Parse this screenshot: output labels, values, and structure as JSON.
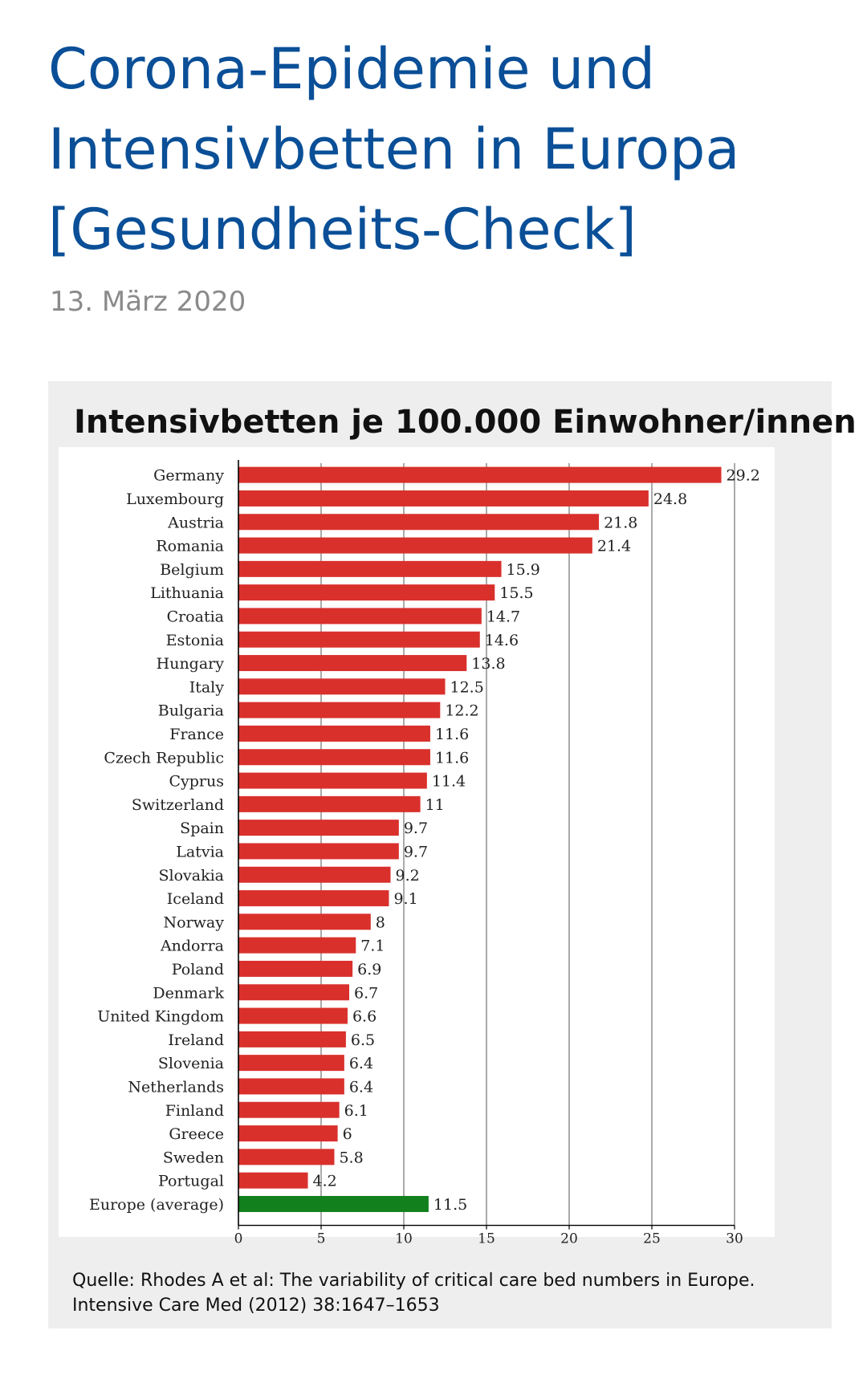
{
  "article": {
    "title_lines": [
      "Corona-Epidemie und",
      "Intensivbetten in Europa",
      "[Gesundheits-Check]"
    ],
    "date": "13. März 2020"
  },
  "figure": {
    "caption_lines": [
      "Quelle: Rhodes A et al: The variability of critical care bed numbers in Europe.",
      "Intensive Care Med (2012) 38:1647–1653"
    ]
  },
  "chart_data": {
    "type": "bar",
    "orientation": "horizontal",
    "title": "Intensivbetten je 100.000 Einwohner/innen",
    "xlabel": "",
    "ylabel": "",
    "xlim": [
      0,
      30
    ],
    "xticks": [
      0,
      5,
      10,
      15,
      20,
      25,
      30
    ],
    "grid": true,
    "categories": [
      "Germany",
      "Luxembourg",
      "Austria",
      "Romania",
      "Belgium",
      "Lithuania",
      "Croatia",
      "Estonia",
      "Hungary",
      "Italy",
      "Bulgaria",
      "France",
      "Czech Republic",
      "Cyprus",
      "Switzerland",
      "Spain",
      "Latvia",
      "Slovakia",
      "Iceland",
      "Norway",
      "Andorra",
      "Poland",
      "Denmark",
      "United Kingdom",
      "Ireland",
      "Slovenia",
      "Netherlands",
      "Finland",
      "Greece",
      "Sweden",
      "Portugal",
      "Europe (average)"
    ],
    "values": [
      29.2,
      24.8,
      21.8,
      21.4,
      15.9,
      15.5,
      14.7,
      14.6,
      13.8,
      12.5,
      12.2,
      11.6,
      11.6,
      11.4,
      11,
      9.7,
      9.7,
      9.2,
      9.1,
      8,
      7.1,
      6.9,
      6.7,
      6.6,
      6.5,
      6.4,
      6.4,
      6.1,
      6,
      5.8,
      4.2,
      11.5
    ],
    "value_labels": [
      "29.2",
      "24.8",
      "21.8",
      "21.4",
      "15.9",
      "15.5",
      "14.7",
      "14.6",
      "13.8",
      "12.5",
      "12.2",
      "11.6",
      "11.6",
      "11.4",
      "11",
      "9.7",
      "9.7",
      "9.2",
      "9.1",
      "8",
      "7.1",
      "6.9",
      "6.7",
      "6.6",
      "6.5",
      "6.4",
      "6.4",
      "6.1",
      "6",
      "5.8",
      "4.2",
      "11.5"
    ],
    "colors": {
      "country": "#d9302c",
      "average": "#11801d",
      "grid": "#555555",
      "axis": "#000000"
    },
    "highlight_category": "Europe (average)"
  }
}
